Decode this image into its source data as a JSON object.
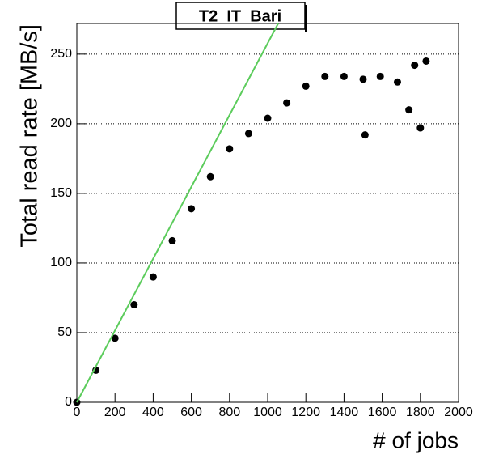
{
  "chart_data": {
    "type": "scatter",
    "title": "T2_IT_Bari",
    "x_label": "# of jobs",
    "y_label": "Total read rate [MB/s]",
    "xlim": [
      0,
      2000
    ],
    "ylim": [
      0,
      272
    ],
    "xticks": [
      0,
      200,
      400,
      600,
      800,
      1000,
      1200,
      1400,
      1600,
      1800,
      2000
    ],
    "yticks": [
      0,
      50,
      100,
      150,
      200,
      250
    ],
    "grid": true,
    "series": [
      {
        "color": "#000000",
        "x": [
          0,
          100,
          200,
          300,
          400,
          500,
          600,
          700,
          800,
          900,
          1000,
          1100,
          1200,
          1300,
          1400,
          1500,
          1510,
          1590,
          1680,
          1740,
          1770,
          1800,
          1830
        ],
        "values": [
          0,
          23,
          46,
          70,
          90,
          116,
          139,
          162,
          182,
          193,
          204,
          215,
          227,
          234,
          234,
          232,
          192,
          234,
          230,
          210,
          242,
          197,
          245
        ]
      },
      {
        "type": "line",
        "color": "#5ccc5c",
        "x": [
          0,
          1055
        ],
        "values": [
          0,
          272
        ]
      }
    ]
  }
}
